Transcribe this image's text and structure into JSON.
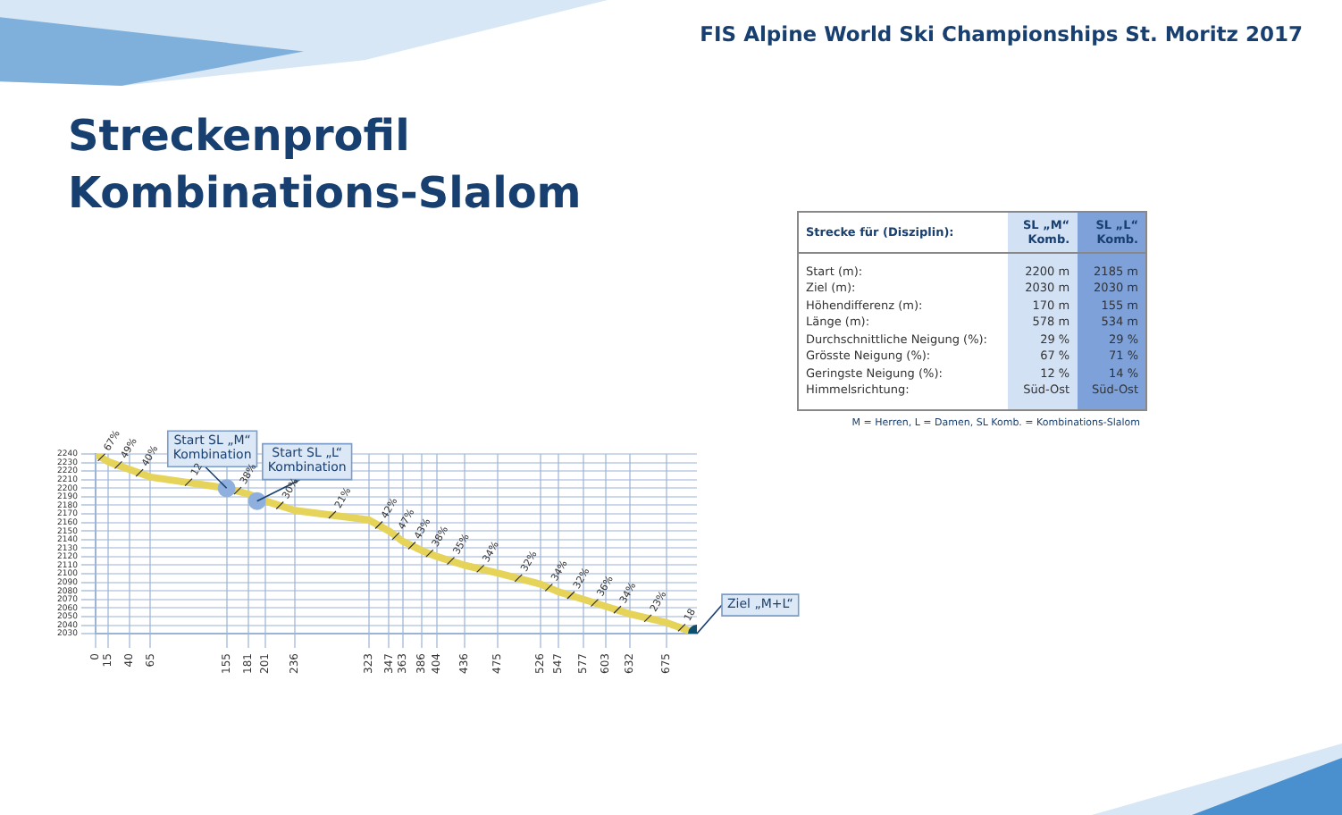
{
  "chart_data": [
    {
      "type": "line",
      "title": "Streckenprofil",
      "subtitle": "Kombinations-Slalom",
      "x": [
        0,
        15,
        40,
        65,
        155,
        181,
        201,
        236,
        323,
        347,
        363,
        386,
        404,
        436,
        475,
        526,
        547,
        577,
        603,
        632,
        675,
        711
      ],
      "series": [
        {
          "type": "line",
          "color": "#e6d45a",
          "values": [
            2240,
            2231,
            2222,
            2213,
            2200,
            2193,
            2185,
            2174,
            2163,
            2150,
            2138,
            2127,
            2120,
            2110,
            2101,
            2088,
            2079,
            2070,
            2062,
            2053,
            2043,
            2030
          ]
        },
        {
          "type": "scatter",
          "marker": "circle",
          "x": [
            155,
            191,
            711
          ],
          "colors": [
            "#8fb0de",
            "#8fb0de",
            "#0d4f70"
          ],
          "values": [
            2200,
            2185,
            2030
          ]
        }
      ],
      "xlim": [
        0,
        711
      ],
      "xticks": [
        0,
        15,
        40,
        65,
        155,
        181,
        201,
        236,
        323,
        347,
        363,
        386,
        404,
        436,
        475,
        526,
        547,
        577,
        603,
        632,
        675
      ],
      "ylim": [
        2030,
        2240
      ],
      "yticks": [
        2030,
        2040,
        2050,
        2060,
        2070,
        2080,
        2090,
        2100,
        2110,
        2120,
        2130,
        2140,
        2150,
        2160,
        2170,
        2180,
        2190,
        2200,
        2210,
        2220,
        2230,
        2240
      ],
      "grid": true,
      "legend": false,
      "marker": "none",
      "line_style": "solid",
      "annotations": [
        "FIS Alpine World Ski Championships St. Moritz 2017",
        {
          "text": "Start SL „M“ Kombination",
          "x": 155,
          "y": 2200
        },
        {
          "text": "Start SL „L“ Kombination",
          "x": 191,
          "y": 2185
        },
        {
          "text": "Ziel „M+L“",
          "x": 711,
          "y": 2030
        },
        {
          "text": "67%",
          "x": 7,
          "y": 2236
        },
        {
          "text": "49%",
          "x": 27,
          "y": 2227
        },
        {
          "text": "40%",
          "x": 52,
          "y": 2218
        },
        {
          "text": "12",
          "x": 110,
          "y": 2207
        },
        {
          "text": "38%",
          "x": 168,
          "y": 2197
        },
        {
          "text": "30%",
          "x": 218,
          "y": 2180
        },
        {
          "text": "21%",
          "x": 280,
          "y": 2169
        },
        {
          "text": "42%",
          "x": 335,
          "y": 2157
        },
        {
          "text": "47%",
          "x": 355,
          "y": 2144
        },
        {
          "text": "43%",
          "x": 374,
          "y": 2133
        },
        {
          "text": "38%",
          "x": 395,
          "y": 2124
        },
        {
          "text": "35%",
          "x": 420,
          "y": 2115
        },
        {
          "text": "34%",
          "x": 455,
          "y": 2106
        },
        {
          "text": "32%",
          "x": 500,
          "y": 2095
        },
        {
          "text": "34%",
          "x": 536,
          "y": 2084
        },
        {
          "text": "32%",
          "x": 562,
          "y": 2075
        },
        {
          "text": "36%",
          "x": 590,
          "y": 2066
        },
        {
          "text": "34%",
          "x": 617,
          "y": 2058
        },
        {
          "text": "23%",
          "x": 653,
          "y": 2048
        },
        {
          "text": "18",
          "x": 693,
          "y": 2037
        }
      ]
    },
    {
      "type": "other",
      "title": "Strecke für (Disziplin):",
      "categories": [
        "SL „M“ Komb.",
        "SL „L“ Komb."
      ],
      "colors": [
        "#d3e1f4",
        "#7da1d8"
      ],
      "y_categories": [
        "Start (m):",
        "Ziel (m):",
        "Höhendifferenz (m):",
        "Länge (m):",
        "Durchschnittliche Neigung (%):",
        "Grösste Neigung (%):",
        "Geringste Neigung (%):",
        "Himmelsrichtung:"
      ],
      "cell_labels": [
        [
          "2200 m",
          "2185 m"
        ],
        [
          "2030 m",
          "2030 m"
        ],
        [
          "170 m",
          "155 m"
        ],
        [
          "578 m",
          "534 m"
        ],
        [
          "29 %",
          "29 %"
        ],
        [
          "67 %",
          "71 %"
        ],
        [
          "12 %",
          "14 %"
        ],
        [
          "Süd-Ost",
          "Süd-Ost"
        ]
      ],
      "annotations": [
        "M = Herren, L = Damen, SL Komb. = Kombinations-Slalom"
      ]
    }
  ]
}
